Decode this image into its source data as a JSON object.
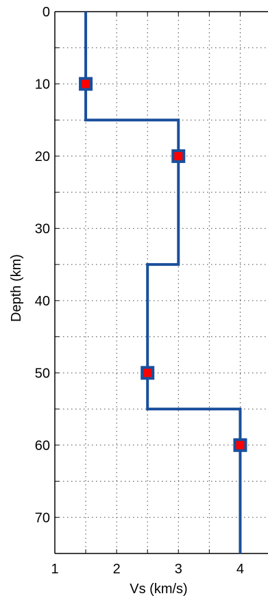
{
  "chart_data": {
    "type": "line",
    "xlabel": "Vs (km/s)",
    "ylabel": "Depth (km)",
    "xlim": [
      1,
      4.45
    ],
    "ylim": [
      0,
      75
    ],
    "y_reversed": true,
    "grid": true,
    "grid_style": "dotted",
    "xticks": [
      1,
      2,
      3,
      4
    ],
    "yticks": [
      0,
      10,
      20,
      30,
      40,
      50,
      60,
      70
    ],
    "x_minor_ticks": [
      1.5,
      2.5,
      3.5
    ],
    "y_minor_ticks": [
      5,
      15,
      25,
      35,
      45,
      55,
      65,
      75
    ],
    "series": [
      {
        "kind": "step-profile",
        "color": "#1a4f9c",
        "points": [
          {
            "vs": 1.5,
            "depth": 0
          },
          {
            "vs": 1.5,
            "depth": 15
          },
          {
            "vs": 3.0,
            "depth": 15
          },
          {
            "vs": 3.0,
            "depth": 35
          },
          {
            "vs": 2.5,
            "depth": 35
          },
          {
            "vs": 2.5,
            "depth": 55
          },
          {
            "vs": 4.0,
            "depth": 55
          },
          {
            "vs": 4.0,
            "depth": 75
          }
        ]
      },
      {
        "kind": "markers",
        "marker": "square",
        "edge_color": "#1a4f9c",
        "face_color": "#ff0000",
        "points": [
          {
            "vs": 1.5,
            "depth": 10
          },
          {
            "vs": 3.0,
            "depth": 20
          },
          {
            "vs": 2.5,
            "depth": 50
          },
          {
            "vs": 4.0,
            "depth": 60
          }
        ]
      }
    ]
  }
}
